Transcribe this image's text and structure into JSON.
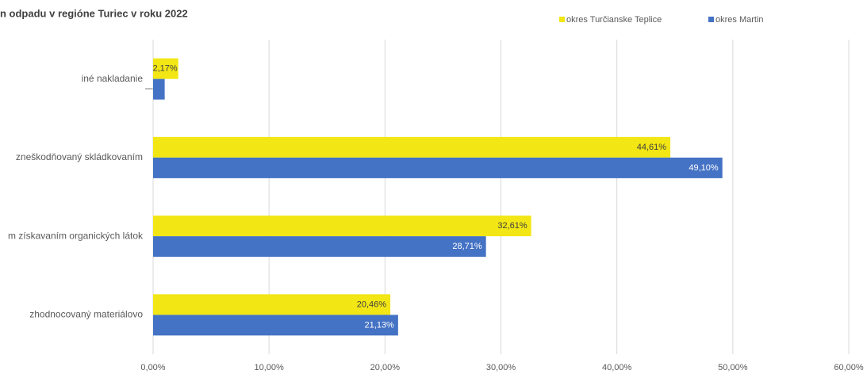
{
  "chart_data": {
    "type": "bar",
    "orientation": "horizontal",
    "title": "n  odpadu  v regióne Turiec v roku 2022",
    "categories": [
      "iné nakladanie",
      "zneškodňovaný skládkovaním",
      "m získavaním organických látok",
      "zhodnocovaný materiálovo"
    ],
    "series": [
      {
        "name": "okres Turčianske Teplice",
        "color": "#f2e614",
        "values": [
          2.17,
          44.61,
          32.61,
          20.46
        ],
        "value_labels": [
          "2,17%",
          "44,61%",
          "32,61%",
          "20,46%"
        ]
      },
      {
        "name": "okres Martin",
        "color": "#4472c4",
        "values": [
          1.0,
          49.1,
          28.71,
          21.13
        ],
        "value_labels": [
          null,
          "49,10%",
          "28,71%",
          "21,13%"
        ]
      }
    ],
    "xlim": [
      0,
      60
    ],
    "xticks": [
      {
        "value": 0,
        "label": "0,00%"
      },
      {
        "value": 10,
        "label": "10,00%"
      },
      {
        "value": 20,
        "label": "20,00%"
      },
      {
        "value": 30,
        "label": "30,00%"
      },
      {
        "value": 40,
        "label": "40,00%"
      },
      {
        "value": 50,
        "label": "50,00%"
      },
      {
        "value": 60,
        "label": "60,00%"
      }
    ],
    "grid": true,
    "legend": "top"
  }
}
